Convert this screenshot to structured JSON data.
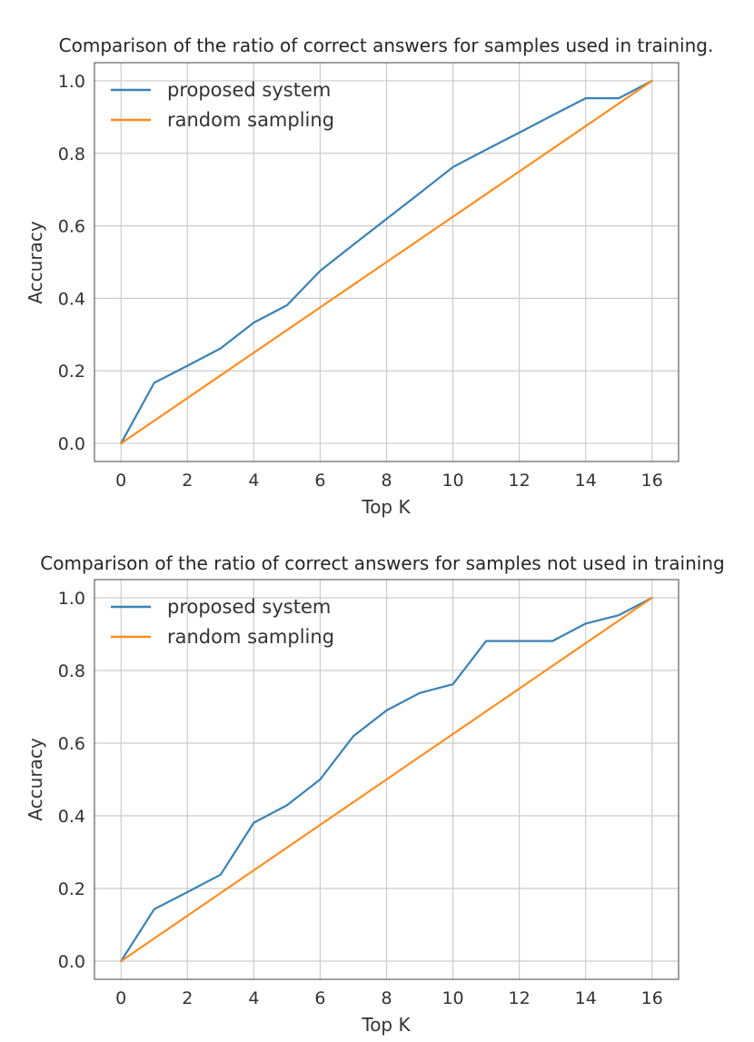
{
  "chart_data": [
    {
      "type": "line",
      "title": "Comparison of the ratio of correct answers for samples used in training.",
      "xlabel": "Top K",
      "ylabel": "Accuracy",
      "xlim": [
        -0.8,
        16.8
      ],
      "ylim": [
        -0.05,
        1.05
      ],
      "xticks": [
        0,
        2,
        4,
        6,
        8,
        10,
        12,
        14,
        16
      ],
      "xtick_labels": [
        "0",
        "2",
        "4",
        "6",
        "8",
        "10",
        "12",
        "14",
        "16"
      ],
      "yticks": [
        0.0,
        0.2,
        0.4,
        0.6,
        0.8,
        1.0
      ],
      "ytick_labels": [
        "0.0",
        "0.2",
        "0.4",
        "0.6",
        "0.8",
        "1.0"
      ],
      "grid": true,
      "legend_position": "top-left",
      "x": [
        0,
        1,
        2,
        3,
        4,
        5,
        6,
        7,
        8,
        9,
        10,
        11,
        12,
        13,
        14,
        15,
        16
      ],
      "series": [
        {
          "name": "proposed system",
          "color": "#3a82b5",
          "values": [
            0.0,
            0.167,
            0.214,
            0.262,
            0.333,
            0.381,
            0.476,
            0.548,
            0.619,
            0.69,
            0.762,
            0.81,
            0.857,
            0.905,
            0.952,
            0.952,
            1.0
          ]
        },
        {
          "name": "random sampling",
          "color": "#ff8c1f",
          "values": [
            0.0,
            0.0625,
            0.125,
            0.1875,
            0.25,
            0.3125,
            0.375,
            0.4375,
            0.5,
            0.5625,
            0.625,
            0.6875,
            0.75,
            0.8125,
            0.875,
            0.9375,
            1.0
          ]
        }
      ]
    },
    {
      "type": "line",
      "title": "Comparison of the ratio of correct answers for samples not used in training",
      "xlabel": "Top K",
      "ylabel": "Accuracy",
      "xlim": [
        -0.8,
        16.8
      ],
      "ylim": [
        -0.05,
        1.05
      ],
      "xticks": [
        0,
        2,
        4,
        6,
        8,
        10,
        12,
        14,
        16
      ],
      "xtick_labels": [
        "0",
        "2",
        "4",
        "6",
        "8",
        "10",
        "12",
        "14",
        "16"
      ],
      "yticks": [
        0.0,
        0.2,
        0.4,
        0.6,
        0.8,
        1.0
      ],
      "ytick_labels": [
        "0.0",
        "0.2",
        "0.4",
        "0.6",
        "0.8",
        "1.0"
      ],
      "grid": true,
      "legend_position": "top-left",
      "x": [
        0,
        1,
        2,
        3,
        4,
        5,
        6,
        7,
        8,
        9,
        10,
        11,
        12,
        13,
        14,
        15,
        16
      ],
      "series": [
        {
          "name": "proposed system",
          "color": "#3a82b5",
          "values": [
            0.0,
            0.143,
            0.19,
            0.238,
            0.381,
            0.429,
            0.5,
            0.619,
            0.69,
            0.738,
            0.762,
            0.881,
            0.881,
            0.881,
            0.929,
            0.952,
            1.0
          ]
        },
        {
          "name": "random sampling",
          "color": "#ff8c1f",
          "values": [
            0.0,
            0.0625,
            0.125,
            0.1875,
            0.25,
            0.3125,
            0.375,
            0.4375,
            0.5,
            0.5625,
            0.625,
            0.6875,
            0.75,
            0.8125,
            0.875,
            0.9375,
            1.0
          ]
        }
      ]
    }
  ]
}
